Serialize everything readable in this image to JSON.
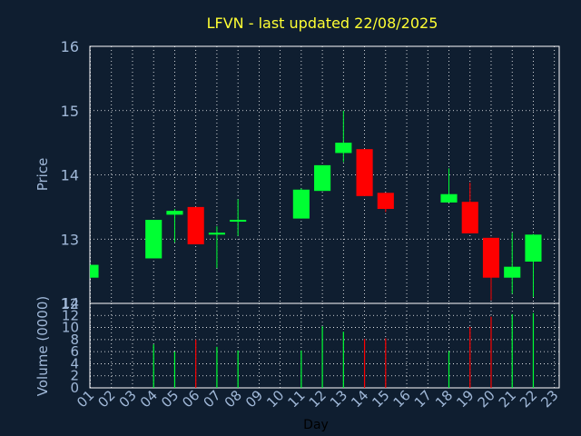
{
  "colors": {
    "background": "#0f1e30",
    "title": "#ffff33",
    "axis_text": "#a0b8d8",
    "frame": "#ffffff",
    "grid": "#ffffff",
    "up": "#00ff33",
    "down": "#ff0000"
  },
  "chart_data": [
    {
      "type": "candlestick",
      "title": "LFVN - last updated 22/08/2025",
      "ylabel": "Price",
      "ylim": [
        12,
        16
      ],
      "yticks": [
        12,
        13,
        14,
        15,
        16
      ],
      "x_ticks": [
        "01",
        "02",
        "03",
        "04",
        "05",
        "06",
        "07",
        "08",
        "09",
        "10",
        "11",
        "12",
        "13",
        "14",
        "15",
        "16",
        "17",
        "18",
        "19",
        "20",
        "21",
        "22",
        "23"
      ],
      "grid": true,
      "candles": [
        {
          "day": "01",
          "open": 12.4,
          "high": 12.6,
          "low": 12.4,
          "close": 12.6
        },
        {
          "day": "04",
          "open": 12.7,
          "high": 13.3,
          "low": 12.7,
          "close": 13.3
        },
        {
          "day": "05",
          "open": 13.38,
          "high": 13.47,
          "low": 12.95,
          "close": 13.44
        },
        {
          "day": "06",
          "open": 13.5,
          "high": 13.5,
          "low": 12.92,
          "close": 12.92
        },
        {
          "day": "07",
          "open": 13.07,
          "high": 13.2,
          "low": 12.55,
          "close": 13.1
        },
        {
          "day": "08",
          "open": 13.28,
          "high": 13.62,
          "low": 13.05,
          "close": 13.3
        },
        {
          "day": "11",
          "open": 13.32,
          "high": 13.79,
          "low": 13.32,
          "close": 13.77
        },
        {
          "day": "12",
          "open": 13.75,
          "high": 14.15,
          "low": 13.75,
          "close": 14.15
        },
        {
          "day": "13",
          "open": 14.34,
          "high": 15.0,
          "low": 14.2,
          "close": 14.5
        },
        {
          "day": "14",
          "open": 14.4,
          "high": 14.4,
          "low": 13.67,
          "close": 13.67
        },
        {
          "day": "15",
          "open": 13.72,
          "high": 13.72,
          "low": 13.42,
          "close": 13.47
        },
        {
          "day": "18",
          "open": 13.57,
          "high": 14.1,
          "low": 13.57,
          "close": 13.7
        },
        {
          "day": "19",
          "open": 13.58,
          "high": 13.88,
          "low": 13.09,
          "close": 13.09
        },
        {
          "day": "20",
          "open": 13.02,
          "high": 13.02,
          "low": 12.05,
          "close": 12.4
        },
        {
          "day": "21",
          "open": 12.4,
          "high": 13.1,
          "low": 12.15,
          "close": 12.57
        },
        {
          "day": "22",
          "open": 12.65,
          "high": 13.08,
          "low": 12.1,
          "close": 13.07
        }
      ]
    },
    {
      "type": "bar",
      "xlabel": "Day",
      "ylabel": "Volume (0000)",
      "ylim": [
        0,
        14
      ],
      "yticks": [
        0,
        2,
        4,
        6,
        8,
        10,
        12,
        14
      ],
      "x_ticks": [
        "01",
        "02",
        "03",
        "04",
        "05",
        "06",
        "07",
        "08",
        "09",
        "10",
        "11",
        "12",
        "13",
        "14",
        "15",
        "16",
        "17",
        "18",
        "19",
        "20",
        "21",
        "22",
        "23"
      ],
      "grid": true,
      "bars": [
        {
          "day": "04",
          "value": 7.2,
          "direction": "up"
        },
        {
          "day": "05",
          "value": 6.0,
          "direction": "up"
        },
        {
          "day": "06",
          "value": 8.0,
          "direction": "down"
        },
        {
          "day": "07",
          "value": 6.8,
          "direction": "up"
        },
        {
          "day": "08",
          "value": 6.2,
          "direction": "up"
        },
        {
          "day": "11",
          "value": 6.2,
          "direction": "up"
        },
        {
          "day": "12",
          "value": 10.2,
          "direction": "up"
        },
        {
          "day": "13",
          "value": 9.3,
          "direction": "up"
        },
        {
          "day": "14",
          "value": 8.1,
          "direction": "down"
        },
        {
          "day": "15",
          "value": 8.2,
          "direction": "down"
        },
        {
          "day": "18",
          "value": 6.1,
          "direction": "up"
        },
        {
          "day": "19",
          "value": 10.1,
          "direction": "down"
        },
        {
          "day": "20",
          "value": 11.8,
          "direction": "down"
        },
        {
          "day": "21",
          "value": 12.2,
          "direction": "up"
        },
        {
          "day": "22",
          "value": 12.4,
          "direction": "up"
        }
      ]
    }
  ]
}
